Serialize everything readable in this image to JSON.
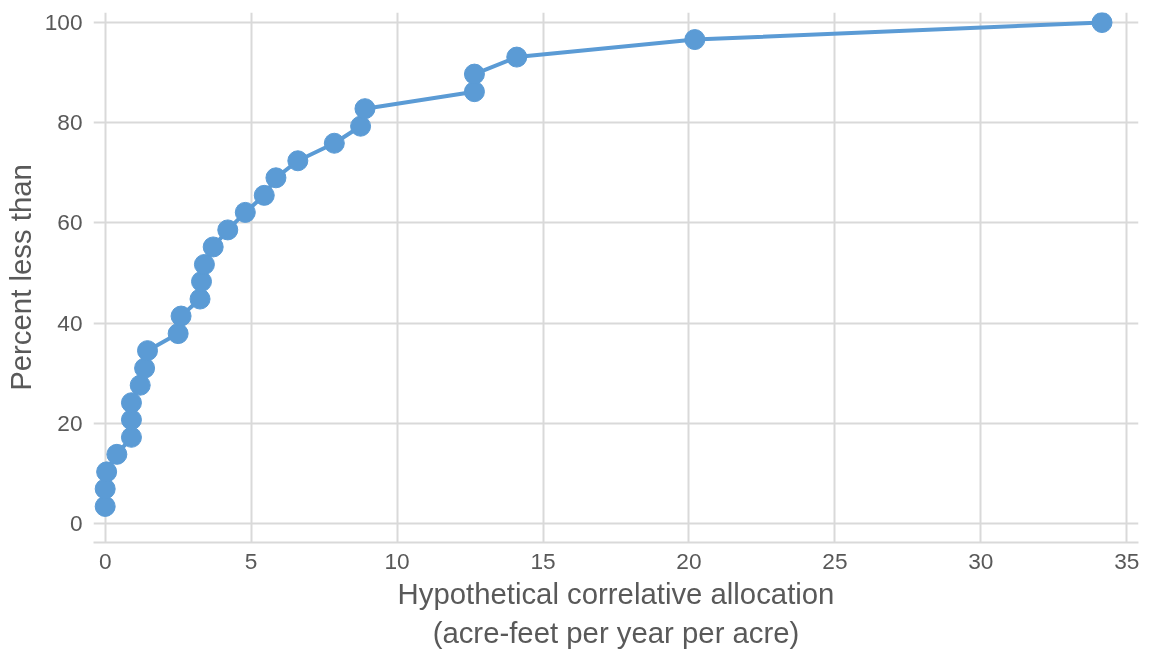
{
  "chart_data": {
    "type": "line",
    "xlabel": "Hypothetical correlative allocation\n(acre-feet per year per acre)",
    "ylabel": "Percent less than",
    "x": [
      0,
      0,
      0.05,
      0.4,
      0.9,
      0.9,
      0.9,
      1.2,
      1.35,
      1.45,
      2.5,
      2.6,
      3.25,
      3.3,
      3.4,
      3.7,
      4.2,
      4.8,
      5.45,
      5.85,
      6.6,
      7.85,
      8.75,
      8.9,
      12.65,
      12.65,
      14.1,
      20.2,
      34.15
    ],
    "series": [
      {
        "color": "#5b9bd5",
        "values": [
          3.4,
          6.9,
          10.3,
          13.8,
          17.2,
          20.7,
          24.1,
          27.6,
          31.0,
          34.5,
          37.9,
          41.4,
          44.8,
          48.3,
          51.7,
          55.2,
          58.6,
          62.1,
          65.5,
          69.0,
          72.4,
          75.9,
          79.3,
          82.8,
          86.2,
          89.7,
          93.1,
          96.6,
          100
        ]
      }
    ],
    "xlim": [
      -0.4,
      35.4
    ],
    "ylim": [
      -3.8,
      102
    ],
    "xticks": [
      0,
      5,
      10,
      15,
      20,
      25,
      30,
      35
    ],
    "yticks": [
      0,
      20,
      40,
      60,
      80,
      100
    ],
    "grid": true,
    "marker": "circle",
    "line_style": "solid"
  }
}
